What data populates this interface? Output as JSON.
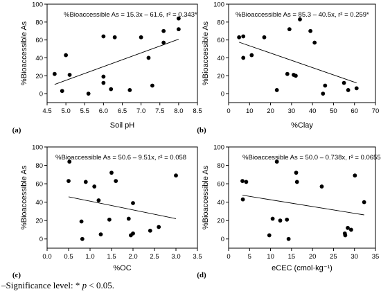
{
  "footnote": {
    "prefix": "–Significance level: * ",
    "p": "p",
    "suffix": " < 0.05."
  },
  "chart_data": [
    {
      "panel": "(a)",
      "type": "scatter",
      "xlabel": "Soil pH",
      "ylabel": "%Bioaccessible As",
      "equation": "%Bioaccessible As = 15.3x – 61.6, r² = 0.343*",
      "xlim": [
        4.5,
        8.5
      ],
      "ylim": [
        -10,
        100
      ],
      "xticks": [
        4.5,
        5.0,
        5.5,
        6.0,
        6.5,
        7.0,
        7.5,
        8.0,
        8.5
      ],
      "xticklabels": [
        "4.5",
        "5.0",
        "5.5",
        "6.0",
        "6.5",
        "7.0",
        "7.5",
        "8.0",
        "8.5"
      ],
      "yticks": [
        0,
        20,
        40,
        60,
        80,
        100
      ],
      "grid": false,
      "x": [
        4.7,
        4.9,
        5.0,
        5.1,
        5.6,
        6.0,
        6.0,
        6.0,
        6.2,
        6.3,
        6.7,
        7.0,
        7.2,
        7.3,
        7.6,
        7.6,
        8.0,
        8.0
      ],
      "y": [
        22,
        3,
        43,
        21,
        0,
        64,
        19,
        12,
        5,
        63,
        4,
        63,
        40,
        9,
        70,
        57,
        84,
        72
      ],
      "fit": {
        "slope": 15.3,
        "intercept": -61.6,
        "xrange": [
          4.7,
          8.0
        ]
      }
    },
    {
      "panel": "(b)",
      "type": "scatter",
      "xlabel": "%Clay",
      "ylabel": "%Bioaccessible As",
      "equation": "%Bioaccessible As = 85.3 – 40.5x, r² = 0.259*",
      "xlim": [
        0,
        70
      ],
      "ylim": [
        -10,
        100
      ],
      "xticks": [
        0,
        10,
        20,
        30,
        40,
        50,
        60,
        70
      ],
      "xticklabels": [
        "0",
        "10",
        "20",
        "30",
        "40",
        "50",
        "60",
        "70"
      ],
      "yticks": [
        0,
        20,
        40,
        60,
        80,
        100
      ],
      "grid": false,
      "x": [
        5,
        7,
        7,
        11,
        17,
        23,
        28,
        29,
        31,
        32,
        34,
        39,
        41,
        45,
        46,
        55,
        57,
        61
      ],
      "y": [
        63,
        64,
        40,
        43,
        63,
        4,
        22,
        72,
        21,
        20,
        83,
        70,
        57,
        0,
        9,
        12,
        4,
        6
      ],
      "fit": {
        "xrange": [
          5,
          61
        ],
        "yrange": [
          57.5,
          12
        ]
      }
    },
    {
      "panel": "(c)",
      "type": "scatter",
      "xlabel": "%OC",
      "ylabel": "%Bioaccessible As",
      "equation": "%Bioaccessible As = 50.6 – 9.51x, r² = 0.058",
      "xlim": [
        0,
        3.5
      ],
      "ylim": [
        -10,
        100
      ],
      "xticks": [
        0,
        0.5,
        1.0,
        1.5,
        2.0,
        2.5,
        3.0,
        3.5
      ],
      "xticklabels": [
        "0.0",
        "0.5",
        "1.0",
        "1.5",
        "2.0",
        "2.5",
        "3.0",
        "3.5"
      ],
      "yticks": [
        0,
        20,
        40,
        60,
        80,
        100
      ],
      "grid": false,
      "x": [
        0.5,
        0.52,
        0.8,
        0.82,
        0.9,
        1.1,
        1.2,
        1.25,
        1.45,
        1.5,
        1.6,
        1.9,
        1.95,
        2.0,
        2.0,
        2.4,
        2.6,
        3.0
      ],
      "y": [
        63,
        84,
        19,
        0,
        62,
        57,
        42,
        5,
        21,
        72,
        63,
        22,
        4,
        39,
        6,
        9,
        13,
        69
      ],
      "fit": {
        "slope": -9.51,
        "intercept": 50.6,
        "xrange": [
          0.5,
          3.0
        ]
      }
    },
    {
      "panel": "(d)",
      "type": "scatter",
      "xlabel": "eCEC (cmol·kg⁻¹)",
      "ylabel": "%Bioaccessible As",
      "equation": "%Bioaccessible As = 50.0 – 0.738x, r² = 0.0655",
      "xlim": [
        0,
        35
      ],
      "ylim": [
        -10,
        100
      ],
      "xticks": [
        0,
        5,
        10,
        15,
        20,
        25,
        30,
        35
      ],
      "xticklabels": [
        "0",
        "5",
        "10",
        "15",
        "20",
        "25",
        "30",
        "35"
      ],
      "yticks": [
        0,
        20,
        40,
        60,
        80,
        100
      ],
      "grid": false,
      "x": [
        3.3,
        3.4,
        4.2,
        9.7,
        10.5,
        11.5,
        12.3,
        13.9,
        14.3,
        16.1,
        16.3,
        22.2,
        27.7,
        27.8,
        28.4,
        29.2,
        30.1,
        32.3
      ],
      "y": [
        63,
        43,
        62,
        4,
        22,
        84,
        20,
        21,
        0,
        72,
        62,
        57,
        6,
        4,
        12,
        10,
        69,
        40
      ],
      "fit": {
        "slope": -0.738,
        "intercept": 50.0,
        "xrange": [
          3.3,
          32.3
        ]
      }
    }
  ]
}
